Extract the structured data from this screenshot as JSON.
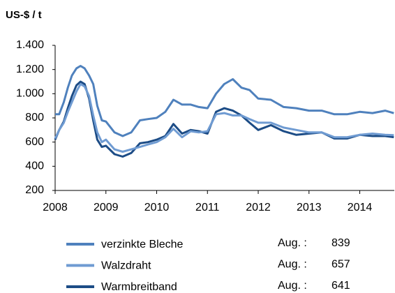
{
  "chart_data": {
    "type": "line",
    "y_label": "US-$ / t",
    "x": [
      2008.0,
      2008.08,
      2008.17,
      2008.25,
      2008.33,
      2008.42,
      2008.5,
      2008.58,
      2008.67,
      2008.75,
      2008.83,
      2008.92,
      2009.0,
      2009.17,
      2009.33,
      2009.5,
      2009.67,
      2009.83,
      2010.0,
      2010.17,
      2010.33,
      2010.5,
      2010.67,
      2010.83,
      2011.0,
      2011.17,
      2011.33,
      2011.5,
      2011.67,
      2011.83,
      2012.0,
      2012.25,
      2012.5,
      2012.75,
      2013.0,
      2013.25,
      2013.5,
      2013.75,
      2014.0,
      2014.25,
      2014.5,
      2014.67
    ],
    "series": [
      {
        "name": "verzinkte Bleche",
        "color": "#4f81bd",
        "latest_label": "Aug. :",
        "latest_value": 839,
        "values": [
          830,
          830,
          930,
          1050,
          1150,
          1210,
          1230,
          1210,
          1150,
          1080,
          900,
          780,
          770,
          680,
          650,
          680,
          780,
          790,
          800,
          850,
          950,
          910,
          910,
          890,
          880,
          1000,
          1080,
          1120,
          1050,
          1030,
          960,
          950,
          890,
          880,
          860,
          860,
          830,
          830,
          850,
          840,
          860,
          839
        ]
      },
      {
        "name": "Walzdraht",
        "color": "#6f9bd2",
        "latest_label": "Aug. :",
        "latest_value": 657,
        "values": [
          630,
          700,
          760,
          850,
          930,
          1020,
          1080,
          1060,
          980,
          820,
          680,
          600,
          620,
          540,
          520,
          540,
          560,
          580,
          600,
          640,
          710,
          640,
          690,
          680,
          690,
          830,
          840,
          820,
          820,
          790,
          760,
          760,
          720,
          700,
          680,
          680,
          640,
          640,
          660,
          670,
          660,
          657
        ]
      },
      {
        "name": "Warmbreitband",
        "color": "#1c4c86",
        "latest_label": "Aug. :",
        "latest_value": 641,
        "values": [
          620,
          700,
          770,
          880,
          980,
          1070,
          1100,
          1080,
          960,
          780,
          620,
          560,
          570,
          500,
          480,
          510,
          590,
          600,
          620,
          650,
          750,
          670,
          700,
          690,
          670,
          850,
          880,
          860,
          820,
          760,
          700,
          740,
          690,
          660,
          670,
          680,
          630,
          630,
          660,
          650,
          650,
          641
        ]
      }
    ],
    "xlim": [
      2008,
      2014.68
    ],
    "xticks": [
      2008,
      2009,
      2010,
      2011,
      2012,
      2013,
      2014
    ],
    "ylim": [
      200,
      1400
    ],
    "yticks": [
      200,
      400,
      600,
      800,
      {
        "value": 1000,
        "label": "1.000"
      },
      {
        "value": 1200,
        "label": "1.200"
      },
      {
        "value": 1400,
        "label": "1.400"
      }
    ],
    "grid": false
  }
}
